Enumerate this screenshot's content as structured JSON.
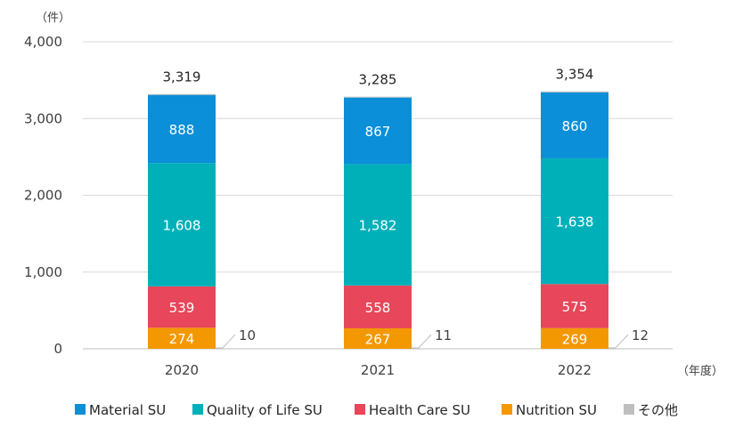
{
  "chart_data": {
    "type": "bar",
    "stacked": true,
    "categories": [
      "2020",
      "2021",
      "2022"
    ],
    "series": [
      {
        "name": "Nutrition SU",
        "color": "#f39800",
        "values": [
          274,
          267,
          269
        ]
      },
      {
        "name": "Health Care SU",
        "color": "#e8465a",
        "values": [
          539,
          558,
          575
        ]
      },
      {
        "name": "Quality of Life SU",
        "color": "#00b0b9",
        "values": [
          1608,
          1582,
          1638
        ]
      },
      {
        "name": "Material SU",
        "color": "#0a8fd8",
        "values": [
          888,
          867,
          860
        ]
      },
      {
        "name": "その他",
        "color": "#bfbfbf",
        "values": [
          10,
          11,
          12
        ]
      }
    ],
    "totals": [
      3319,
      3285,
      3354
    ],
    "legend_order": [
      "Material SU",
      "Quality of Life SU",
      "Health Care SU",
      "Nutrition SU",
      "その他"
    ],
    "ylim": [
      0,
      4000
    ],
    "yticks": [
      0,
      1000,
      2000,
      3000,
      4000
    ],
    "ytick_labels": [
      "0",
      "1,000",
      "2,000",
      "3,000",
      "4,000"
    ],
    "y_unit": "（件）",
    "x_unit": "（年度）",
    "grid": true,
    "legend_position": "bottom"
  }
}
